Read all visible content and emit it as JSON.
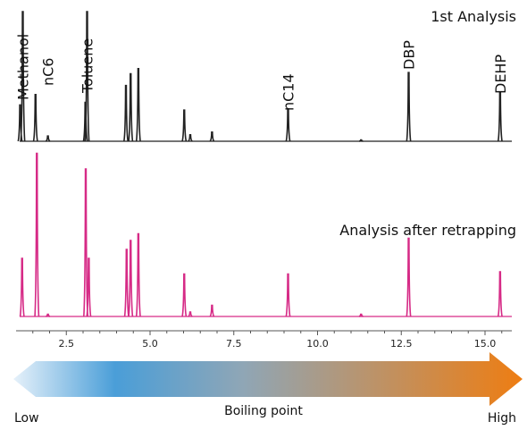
{
  "chart_data": {
    "type": "line",
    "xlabel": "",
    "ylabel": "",
    "xlim": [
      1.0,
      15.8
    ],
    "x_ticks": [
      2.5,
      5.0,
      7.5,
      10.0,
      12.5,
      15.0
    ],
    "x_tick_labels": [
      "2.5",
      "5.0",
      "7.5",
      "10.0",
      "12.5",
      "15.0"
    ],
    "panels": [
      {
        "label": "1st Analysis",
        "color": "#222222",
        "peaks": [
          {
            "rt": 1.12,
            "height": 0.28
          },
          {
            "rt": 1.2,
            "height": 1.0
          },
          {
            "rt": 1.58,
            "height": 0.36
          },
          {
            "rt": 1.95,
            "height": 0.04
          },
          {
            "rt": 3.07,
            "height": 0.3
          },
          {
            "rt": 3.12,
            "height": 1.0
          },
          {
            "rt": 4.28,
            "height": 0.43
          },
          {
            "rt": 4.42,
            "height": 0.52
          },
          {
            "rt": 4.65,
            "height": 0.56
          },
          {
            "rt": 6.02,
            "height": 0.24
          },
          {
            "rt": 6.2,
            "height": 0.05
          },
          {
            "rt": 6.85,
            "height": 0.07
          },
          {
            "rt": 9.12,
            "height": 0.25
          },
          {
            "rt": 11.3,
            "height": 0.01
          },
          {
            "rt": 12.72,
            "height": 0.53
          },
          {
            "rt": 15.45,
            "height": 0.38
          }
        ]
      },
      {
        "label": "Analysis after retrapping",
        "color": "#d62a86",
        "peaks": [
          {
            "rt": 1.18,
            "height": 0.26
          },
          {
            "rt": 1.62,
            "height": 0.73
          },
          {
            "rt": 1.95,
            "height": 0.01
          },
          {
            "rt": 3.08,
            "height": 0.66
          },
          {
            "rt": 3.17,
            "height": 0.26
          },
          {
            "rt": 4.3,
            "height": 0.3
          },
          {
            "rt": 4.42,
            "height": 0.34
          },
          {
            "rt": 4.65,
            "height": 0.37
          },
          {
            "rt": 6.02,
            "height": 0.19
          },
          {
            "rt": 6.2,
            "height": 0.02
          },
          {
            "rt": 6.85,
            "height": 0.05
          },
          {
            "rt": 9.12,
            "height": 0.19
          },
          {
            "rt": 11.3,
            "height": 0.01
          },
          {
            "rt": 12.72,
            "height": 0.35
          },
          {
            "rt": 15.45,
            "height": 0.2
          }
        ]
      }
    ],
    "peak_labels": [
      {
        "text": "Methanol",
        "rt": 1.2
      },
      {
        "text": "nC6",
        "rt": 1.95
      },
      {
        "text": "Toluene",
        "rt": 3.12
      },
      {
        "text": "nC14",
        "rt": 9.12
      },
      {
        "text": "DBP",
        "rt": 12.72
      },
      {
        "text": "DEHP",
        "rt": 15.45
      }
    ]
  },
  "arrow": {
    "label": "Boiling point",
    "low": "Low",
    "high": "High",
    "colors": {
      "start": "#e6f1fa",
      "mid": "#4a9ed8",
      "end": "#ee7d12"
    }
  }
}
